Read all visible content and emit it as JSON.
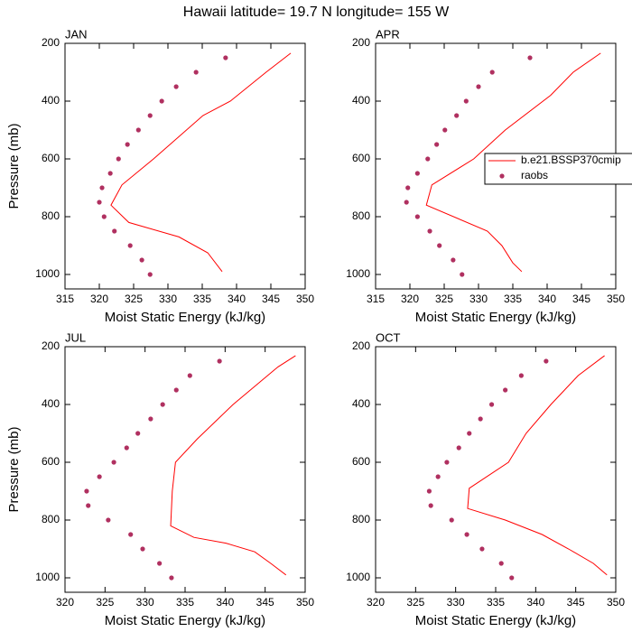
{
  "title": "Hawaii  latitude= 19.7 N longitude= 155 W",
  "chart_data": [
    {
      "type": "line",
      "title": "JAN",
      "x_label": "Moist Static Energy (kJ/kg)",
      "y_label": "Pressure (mb)",
      "xlim": [
        315,
        350
      ],
      "xticks": [
        315,
        320,
        325,
        330,
        335,
        340,
        345,
        350
      ],
      "ylim": [
        1050,
        200
      ],
      "yticks": [
        200,
        400,
        600,
        800,
        1000
      ],
      "series": [
        {
          "color": "#ff0000",
          "x": [
            347.9,
            344.3,
            339.1,
            335.1,
            327.9,
            323.3,
            321.7,
            324.3,
            331.6,
            335.8,
            337.9
          ],
          "y": [
            234,
            300,
            400,
            450,
            600,
            690,
            760,
            820,
            870,
            925,
            990
          ]
        },
        {
          "color": "#b03060",
          "marker": "dot",
          "x": [
            338.4,
            334.1,
            331.2,
            329.1,
            327.4,
            325.7,
            324.1,
            322.8,
            321.6,
            320.4,
            320.0,
            320.7,
            322.2,
            324.5,
            326.2,
            327.4
          ],
          "y": [
            250,
            300,
            350,
            400,
            450,
            500,
            550,
            600,
            650,
            700,
            750,
            800,
            850,
            900,
            950,
            1000
          ]
        }
      ]
    },
    {
      "type": "line",
      "title": "APR",
      "x_label": "Moist Static Energy (kJ/kg)",
      "xlim": [
        315,
        350
      ],
      "xticks": [
        315,
        320,
        325,
        330,
        335,
        340,
        345,
        350
      ],
      "ylim": [
        1050,
        200
      ],
      "yticks": [
        200,
        400,
        600,
        800,
        1000
      ],
      "legend": "right",
      "series": [
        {
          "name": "b.e21.BSSP370cmip",
          "color": "#ff0000",
          "x": [
            347.8,
            343.8,
            340.5,
            333.9,
            329.3,
            323.2,
            322.4,
            331.3,
            333.4,
            335.0,
            336.3
          ],
          "y": [
            234,
            300,
            380,
            500,
            600,
            690,
            760,
            850,
            900,
            960,
            990
          ]
        },
        {
          "name": "raobs",
          "color": "#b03060",
          "marker": "dot",
          "x": [
            337.5,
            332.0,
            330.0,
            328.2,
            326.8,
            325.1,
            323.9,
            322.6,
            321.1,
            319.7,
            319.5,
            321.1,
            322.9,
            324.3,
            326.3,
            327.6
          ],
          "y": [
            250,
            300,
            350,
            400,
            450,
            500,
            550,
            600,
            650,
            700,
            750,
            800,
            850,
            900,
            950,
            1000
          ]
        }
      ]
    },
    {
      "type": "line",
      "title": "JUL",
      "x_label": "Moist Static Energy (kJ/kg)",
      "y_label": "Pressure (mb)",
      "xlim": [
        320,
        350
      ],
      "xticks": [
        320,
        325,
        330,
        335,
        340,
        345,
        350
      ],
      "ylim": [
        1050,
        200
      ],
      "yticks": [
        200,
        400,
        600,
        800,
        1000
      ],
      "series": [
        {
          "color": "#ff0000",
          "x": [
            348.8,
            346.6,
            341.0,
            336.5,
            333.8,
            333.4,
            333.2,
            336.1,
            340.1,
            343.7,
            345.7,
            347.6
          ],
          "y": [
            231,
            270,
            400,
            520,
            600,
            700,
            820,
            860,
            880,
            910,
            950,
            990
          ]
        },
        {
          "color": "#b03060",
          "marker": "dot",
          "x": [
            339.3,
            335.6,
            333.9,
            332.2,
            330.7,
            329.1,
            327.7,
            326.1,
            324.3,
            322.7,
            322.9,
            325.4,
            328.2,
            329.7,
            331.8,
            333.3
          ],
          "y": [
            250,
            300,
            350,
            400,
            450,
            500,
            550,
            600,
            650,
            700,
            750,
            800,
            850,
            900,
            950,
            1000
          ]
        }
      ]
    },
    {
      "type": "line",
      "title": "OCT",
      "x_label": "Moist Static Energy (kJ/kg)",
      "xlim": [
        320,
        350
      ],
      "xticks": [
        320,
        325,
        330,
        335,
        340,
        345,
        350
      ],
      "ylim": [
        1050,
        200
      ],
      "yticks": [
        200,
        400,
        600,
        800,
        1000
      ],
      "series": [
        {
          "color": "#ff0000",
          "x": [
            348.6,
            345.3,
            341.9,
            338.8,
            336.6,
            331.7,
            331.5,
            336.2,
            340.8,
            344.1,
            347.2,
            348.9
          ],
          "y": [
            231,
            300,
            400,
            500,
            600,
            690,
            760,
            800,
            850,
            900,
            950,
            990
          ]
        },
        {
          "color": "#b03060",
          "marker": "dot",
          "x": [
            341.3,
            338.2,
            336.2,
            334.5,
            333.1,
            331.7,
            330.4,
            328.9,
            327.8,
            326.7,
            326.9,
            329.5,
            331.4,
            333.3,
            335.7,
            337.0
          ],
          "y": [
            250,
            300,
            350,
            400,
            450,
            500,
            550,
            600,
            650,
            700,
            750,
            800,
            850,
            900,
            950,
            1000
          ]
        }
      ]
    }
  ]
}
